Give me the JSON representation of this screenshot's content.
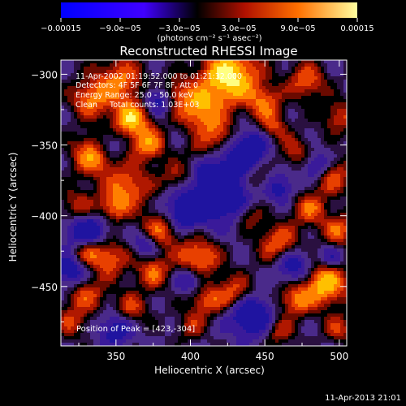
{
  "chart_data": {
    "type": "heatmap",
    "title": "Reconstructed RHESSI Image",
    "xlabel": "Heliocentric X (arcsec)",
    "ylabel": "Heliocentric Y (arcsec)",
    "xlim": [
      313,
      505
    ],
    "ylim": [
      -492,
      -290
    ],
    "xticks": [
      {
        "value": 350,
        "label": "350"
      },
      {
        "value": 400,
        "label": "400"
      },
      {
        "value": 450,
        "label": "450"
      },
      {
        "value": 500,
        "label": "500"
      }
    ],
    "yticks": [
      {
        "value": -300,
        "label": "−300"
      },
      {
        "value": -350,
        "label": "−350"
      },
      {
        "value": -400,
        "label": "−400"
      },
      {
        "value": -450,
        "label": "−450"
      }
    ],
    "colorbar": {
      "range": [
        -0.00015,
        0.00015
      ],
      "tick_labels": [
        "−0.00015",
        "−9.0e−05",
        "−3.0e−05",
        "3.0e−05",
        "9.0e−05",
        "0.00015"
      ],
      "unit_label": "(photons cm⁻² s⁻¹ asec⁻²)"
    },
    "annotations": [
      "11-Apr-2002 01:19:52.000 to 01:21:32.000",
      "Detectors: 4F 5F 6F 7F 8F, Att 0",
      "Energy Range: 25.0 - 50.0 keV",
      "Clean     Total counts: 1.03E+03"
    ],
    "peak_label": "Position of Peak = [423,-304]",
    "peak": {
      "x": 423,
      "y": -304
    },
    "grid": false
  },
  "footer": {
    "timestamp": "11-Apr-2013 21:01"
  }
}
